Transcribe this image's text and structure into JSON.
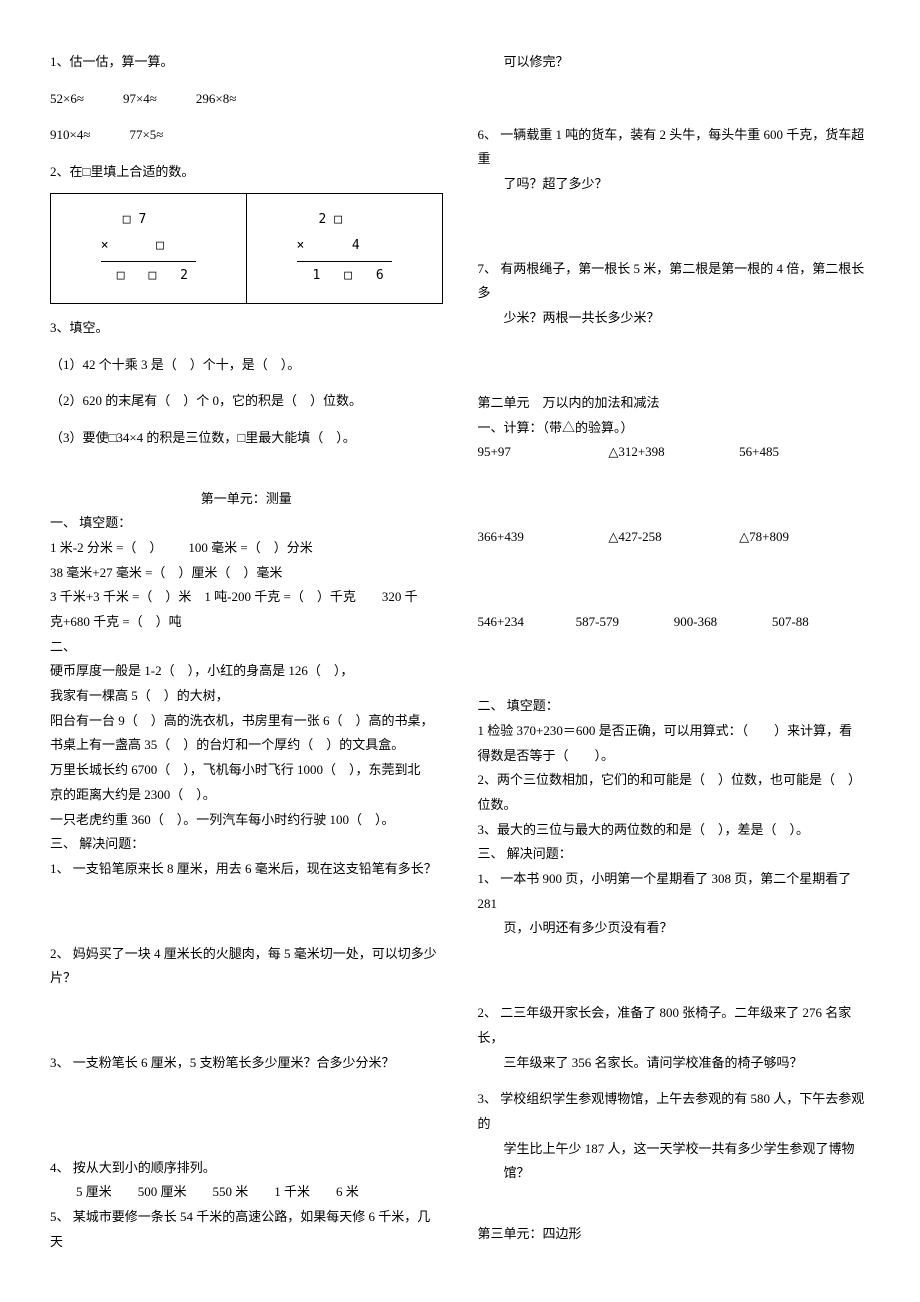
{
  "section_a": {
    "q1": "1、估一估，算一算。",
    "q1_line1": "52×6≈   97×4≈   296×8≈",
    "q1_line2": "910×4≈   77×5≈",
    "q2": "2、在□里填上合适的数。",
    "table_left_top": "□ 7",
    "table_left_times": "×   □",
    "table_left_result": "□ □ 2",
    "table_right_top": "2 □",
    "table_right_times": "×   4",
    "table_right_result": "1 □ 6",
    "q3": "3、填空。",
    "q3_1": "（1）42 个十乘 3 是（ ）个十，是（ ）。",
    "q3_2": "（2）620 的末尾有（ ）个 0，它的积是（ ）位数。",
    "q3_3": "（3）要使□34×4 的积是三位数，□里最大能填（ ）。"
  },
  "unit1": {
    "title": "第一单元：测量",
    "sec1": "一、 填空题：",
    "line1": "1 米-2 分米 =（ ）  100 毫米 =（ ）分米",
    "line2": "38 毫米+27 毫米 =（ ）厘米（ ）毫米",
    "line3": "3 千米+3 千米 =（ ）米 1 吨-200 千克 =（ ）千克  320 千",
    "line3b": "克+680 千克 =（ ）吨",
    "sec2": "二、",
    "line4": "硬币厚度一般是 1-2（ ），小红的身高是 126（ ），",
    "line5": "我家有一棵高 5（ ）的大树，",
    "line6": "阳台有一台 9（ ）高的洗衣机，书房里有一张 6（ ）高的书桌，",
    "line7": "书桌上有一盏高 35（ ）的台灯和一个厚约（ ）的文具盒。",
    "line8": "万里长城长约 6700（ ），飞机每小时飞行 1000（ ），东莞到北",
    "line8b": "京的距离大约是 2300（ ）。",
    "line9": "一只老虎约重 360（ ）。一列汽车每小时约行驶 100（ ）。",
    "sec3": "三、 解决问题：",
    "p1": "1、 一支铅笔原来长 8 厘米，用去 6 毫米后，现在这支铅笔有多长？",
    "p2": "2、 妈妈买了一块 4 厘米长的火腿肉，每 5 毫米切一处，可以切多少片？",
    "p3": "3、 一支粉笔长 6 厘米，5 支粉笔长多少厘米？合多少分米？",
    "p4": "4、 按从大到小的顺序排列。",
    "p4_items": "5 厘米  500 厘米  550 米  1 千米  6 米",
    "p5_a": "5、 某城市要修一条长 54 千米的高速公路，如果每天修 6 千米，几天",
    "p5_b": "可以修完？",
    "p6_a": "6、 一辆载重 1 吨的货车，装有 2 头牛，每头牛重 600 千克，货车超重",
    "p6_b": "了吗？超了多少？",
    "p7_a": "7、 有两根绳子，第一根长 5 米，第二根是第一根的 4 倍，第二根长多",
    "p7_b": "少米？两根一共长多少米？"
  },
  "unit2": {
    "title": "第二单元 万以内的加法和减法",
    "sec1": "一、计算：（带△的验算。）",
    "row1_a": "95+97",
    "row1_b": "△312+398",
    "row1_c": "56+485",
    "row2_a": "366+439",
    "row2_b": "△427-258",
    "row2_c": "△78+809",
    "row3_a": "546+234",
    "row3_b": "587-579",
    "row3_c": "900-368",
    "row3_d": "507-88",
    "sec2": "二、 填空题：",
    "f1_a": "1 检验 370+230＝600 是否正确，可以用算式：（  ）来计算，看",
    "f1_b": "得数是否等于（  ）。",
    "f2": "2、两个三位数相加，它们的和可能是（ ）位数，也可能是（ ）位数。",
    "f3": "3、最大的三位与最大的两位数的和是（ ），差是（ ）。",
    "sec3": "三、 解决问题：",
    "p1_a": "1、 一本书 900 页，小明第一个星期看了 308 页，第二个星期看了 281",
    "p1_b": "页，小明还有多少页没有看？",
    "p2_a": "2、 二三年级开家长会，准备了 800 张椅子。二年级来了 276 名家长，",
    "p2_b": "三年级来了 356 名家长。请问学校准备的椅子够吗？",
    "p3_a": "3、 学校组织学生参观博物馆，上午去参观的有 580 人，下午去参观的",
    "p3_b": "学生比上午少 187 人，这一天学校一共有多少学生参观了博物馆？"
  },
  "unit3": {
    "title": "第三单元：四边形"
  }
}
